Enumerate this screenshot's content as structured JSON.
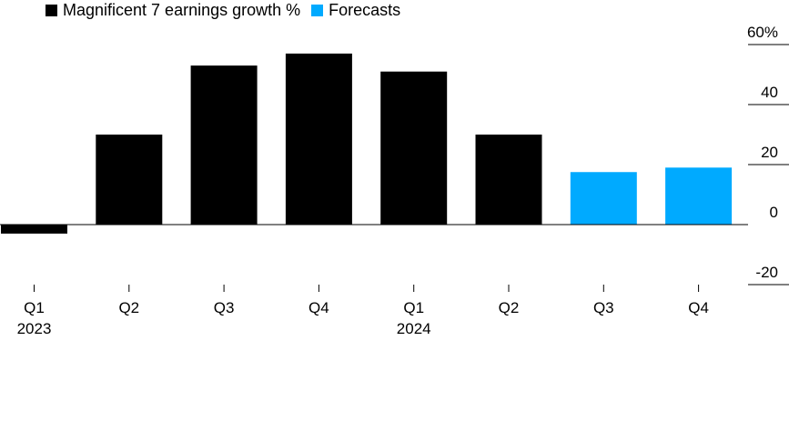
{
  "chart_data": {
    "type": "bar",
    "categories": [
      "Q1",
      "Q2",
      "Q3",
      "Q4",
      "Q1",
      "Q2",
      "Q3",
      "Q4"
    ],
    "year_labels": [
      "2023",
      "",
      "",
      "",
      "2024",
      "",
      "",
      ""
    ],
    "values": [
      -3,
      30,
      53,
      57,
      51,
      30,
      17.5,
      19
    ],
    "kind": [
      "actual",
      "actual",
      "actual",
      "actual",
      "actual",
      "actual",
      "forecast",
      "forecast"
    ],
    "legend": [
      {
        "label": "Magnificent 7 earnings growth %",
        "color": "#000000"
      },
      {
        "label": "Forecasts",
        "color": "#00aaff"
      }
    ],
    "ylim": [
      -20,
      60
    ],
    "yticks": [
      -20,
      0,
      20,
      40,
      60
    ],
    "ytick_labels": [
      "-20",
      "0",
      "20",
      "40",
      "60%"
    ],
    "y_axis_side": "right",
    "grid": false
  }
}
